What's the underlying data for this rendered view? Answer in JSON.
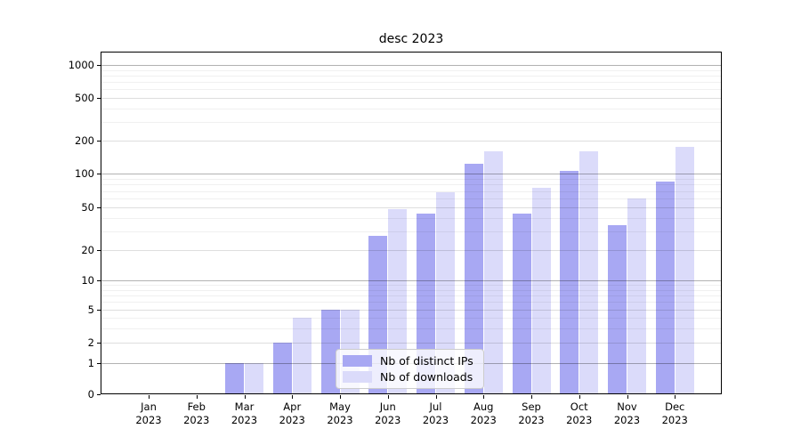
{
  "chart_data": {
    "type": "bar",
    "title": "desc 2023",
    "xlabel": "",
    "ylabel": "",
    "scale": "asinh-log",
    "grid": true,
    "categories": [
      {
        "month": "Jan",
        "year": "2023"
      },
      {
        "month": "Feb",
        "year": "2023"
      },
      {
        "month": "Mar",
        "year": "2023"
      },
      {
        "month": "Apr",
        "year": "2023"
      },
      {
        "month": "May",
        "year": "2023"
      },
      {
        "month": "Jun",
        "year": "2023"
      },
      {
        "month": "Jul",
        "year": "2023"
      },
      {
        "month": "Aug",
        "year": "2023"
      },
      {
        "month": "Sep",
        "year": "2023"
      },
      {
        "month": "Oct",
        "year": "2023"
      },
      {
        "month": "Nov",
        "year": "2023"
      },
      {
        "month": "Dec",
        "year": "2023"
      }
    ],
    "series": [
      {
        "name": "Nb of distinct IPs",
        "color": "#a8a8f3",
        "values": [
          0,
          0,
          1,
          2,
          5,
          27,
          44,
          123,
          44,
          105,
          34,
          85
        ]
      },
      {
        "name": "Nb of downloads",
        "color": "#dbdbfa",
        "values": [
          0,
          0,
          1,
          4,
          5,
          48,
          68,
          160,
          75,
          160,
          60,
          175
        ]
      }
    ],
    "yaxis": {
      "ticks": [
        1000,
        500,
        200,
        100,
        50,
        20,
        10,
        5,
        2,
        1,
        0
      ],
      "tick_labels": [
        "1000",
        "500",
        "200",
        "100",
        "50",
        "20",
        "10",
        "5",
        "2",
        "1",
        "0"
      ],
      "ylim": [
        0,
        1150
      ]
    },
    "legend": {
      "position": "lower center",
      "items": [
        "Nb of distinct IPs",
        "Nb of downloads"
      ]
    }
  },
  "colors": {
    "background": "#ffffff",
    "spine": "#000000",
    "bar_distinct_ips": "#a8a8f3",
    "bar_downloads": "#dbdbfa",
    "grid_major": "rgba(0,0,0,0.30)",
    "grid_mid": "rgba(0,0,0,0.13)",
    "grid_minor": "rgba(0,0,0,0.06)"
  }
}
